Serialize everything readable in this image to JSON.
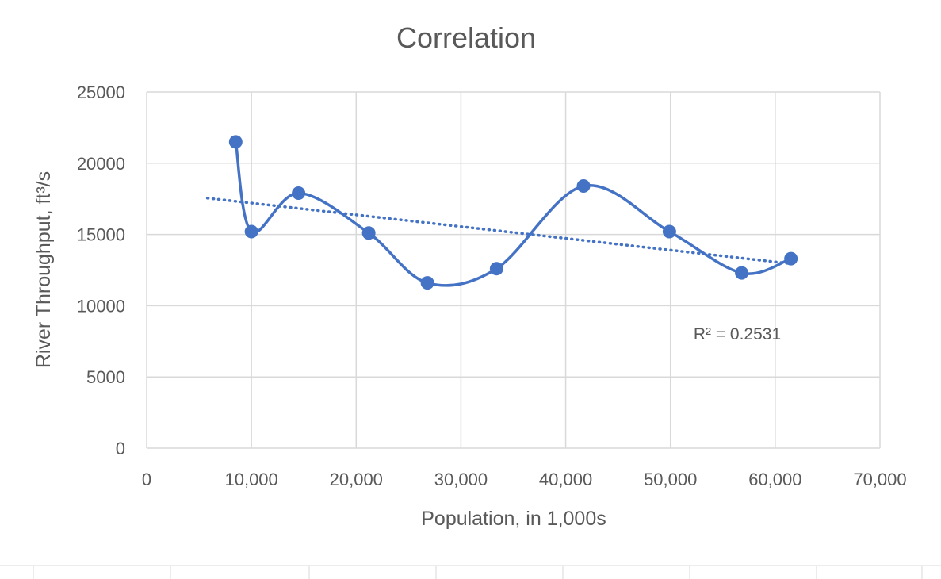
{
  "chart_data": {
    "type": "scatter",
    "title": "Correlation",
    "xlabel": "Population, in 1,000s",
    "ylabel": "River Throughput, ft³/s",
    "xlim": [
      0,
      70000
    ],
    "ylim": [
      0,
      25000
    ],
    "x_ticks": [
      "0",
      "10,000",
      "20,000",
      "30,000",
      "40,000",
      "50,000",
      "60,000",
      "70,000"
    ],
    "y_ticks": [
      "0",
      "5000",
      "10000",
      "15000",
      "20000",
      "25000"
    ],
    "grid": true,
    "smooth_line": true,
    "points": [
      {
        "x": 8500,
        "y": 21500
      },
      {
        "x": 10000,
        "y": 15200
      },
      {
        "x": 14500,
        "y": 17900
      },
      {
        "x": 21200,
        "y": 15100
      },
      {
        "x": 26800,
        "y": 11600
      },
      {
        "x": 33400,
        "y": 12600
      },
      {
        "x": 41700,
        "y": 18400
      },
      {
        "x": 49900,
        "y": 15200
      },
      {
        "x": 56800,
        "y": 12300
      },
      {
        "x": 61500,
        "y": 13300
      }
    ],
    "trendline": {
      "type": "linear",
      "style": "dotted",
      "start": {
        "x": 5800,
        "y": 17550
      },
      "end": {
        "x": 61500,
        "y": 12950
      }
    },
    "r_squared_label": "R² = 0.2531",
    "colors": {
      "series": "#4472C4",
      "grid": "#D9D9D9",
      "text": "#595959"
    }
  }
}
